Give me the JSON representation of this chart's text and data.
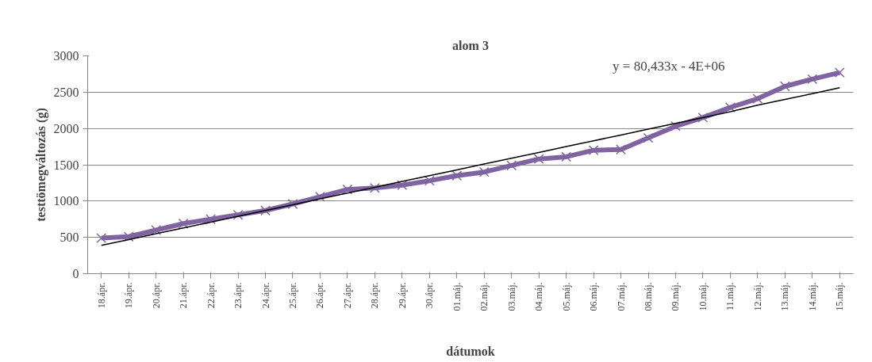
{
  "chart_data": {
    "type": "line",
    "title": "alom 3",
    "xlabel": "dátumok",
    "ylabel": "testtömegváltozás (g)",
    "categories": [
      "18.ápr.",
      "19.ápr.",
      "20.ápr.",
      "21.ápr.",
      "22.ápr.",
      "23.ápr.",
      "24.ápr.",
      "25.ápr.",
      "26.ápr.",
      "27.ápr.",
      "28.ápr.",
      "29.ápr.",
      "30.ápr.",
      "01.máj.",
      "02.máj.",
      "03.máj.",
      "04.máj.",
      "05.máj.",
      "06.máj.",
      "07.máj.",
      "08.máj.",
      "09.máj.",
      "10.máj.",
      "11.máj.",
      "12.máj.",
      "13.máj.",
      "14.máj.",
      "15.máj."
    ],
    "series": [
      {
        "color": "#8064a2",
        "marker": "cross",
        "values": [
          490,
          510,
          600,
          690,
          750,
          810,
          870,
          960,
          1060,
          1160,
          1180,
          1220,
          1280,
          1350,
          1400,
          1490,
          1580,
          1610,
          1700,
          1710,
          1870,
          2030,
          2150,
          2290,
          2410,
          2580,
          2680,
          2770
        ]
      },
      {
        "type": "line",
        "color": "#000000",
        "marker": "none",
        "values": [
          390,
          470,
          550,
          630,
          710,
          790,
          870,
          950,
          1030,
          1110,
          1190,
          1270,
          1350,
          1430,
          1510,
          1590,
          1670,
          1750,
          1830,
          1910,
          1990,
          2070,
          2150,
          2230,
          2320,
          2400,
          2480,
          2560
        ]
      }
    ],
    "annotations": [
      "y = 80,433x - 4E+06"
    ],
    "ylim": [
      0,
      3000
    ],
    "yticks": [
      0,
      500,
      1000,
      1500,
      2000,
      2500,
      3000
    ],
    "grid": "y"
  }
}
